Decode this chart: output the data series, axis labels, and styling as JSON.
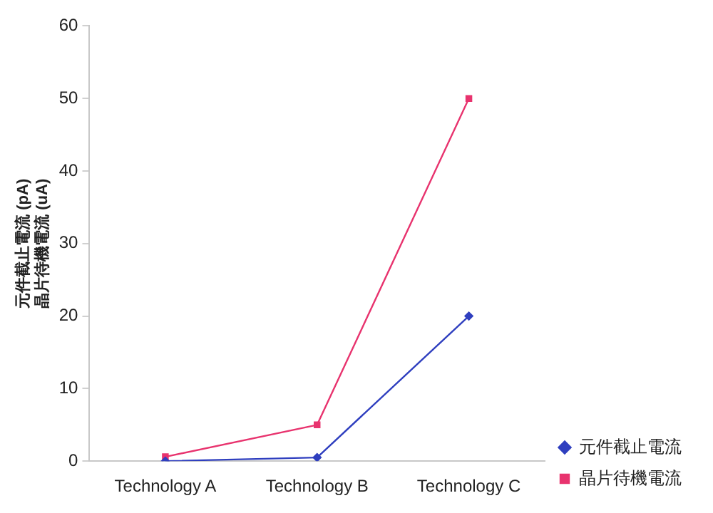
{
  "chart_data": {
    "type": "line",
    "ylabel": "元件截止電流 (pA)\n晶片待機電流 (uA)",
    "categories": [
      "Technology A",
      "Technology B",
      "Technology C"
    ],
    "series": [
      {
        "name": "元件截止電流",
        "color": "#2f3fbf",
        "values": [
          0,
          0.5,
          20
        ],
        "marker": "diamond"
      },
      {
        "name": "晶片待機電流",
        "color": "#e8336e",
        "values": [
          0.6,
          5,
          50
        ],
        "marker": "square"
      }
    ],
    "ylim": [
      0,
      60
    ],
    "yticks": [
      0,
      10,
      20,
      30,
      40,
      50,
      60
    ],
    "grid": false,
    "legend": "bottom right",
    "line_style": "solid"
  }
}
